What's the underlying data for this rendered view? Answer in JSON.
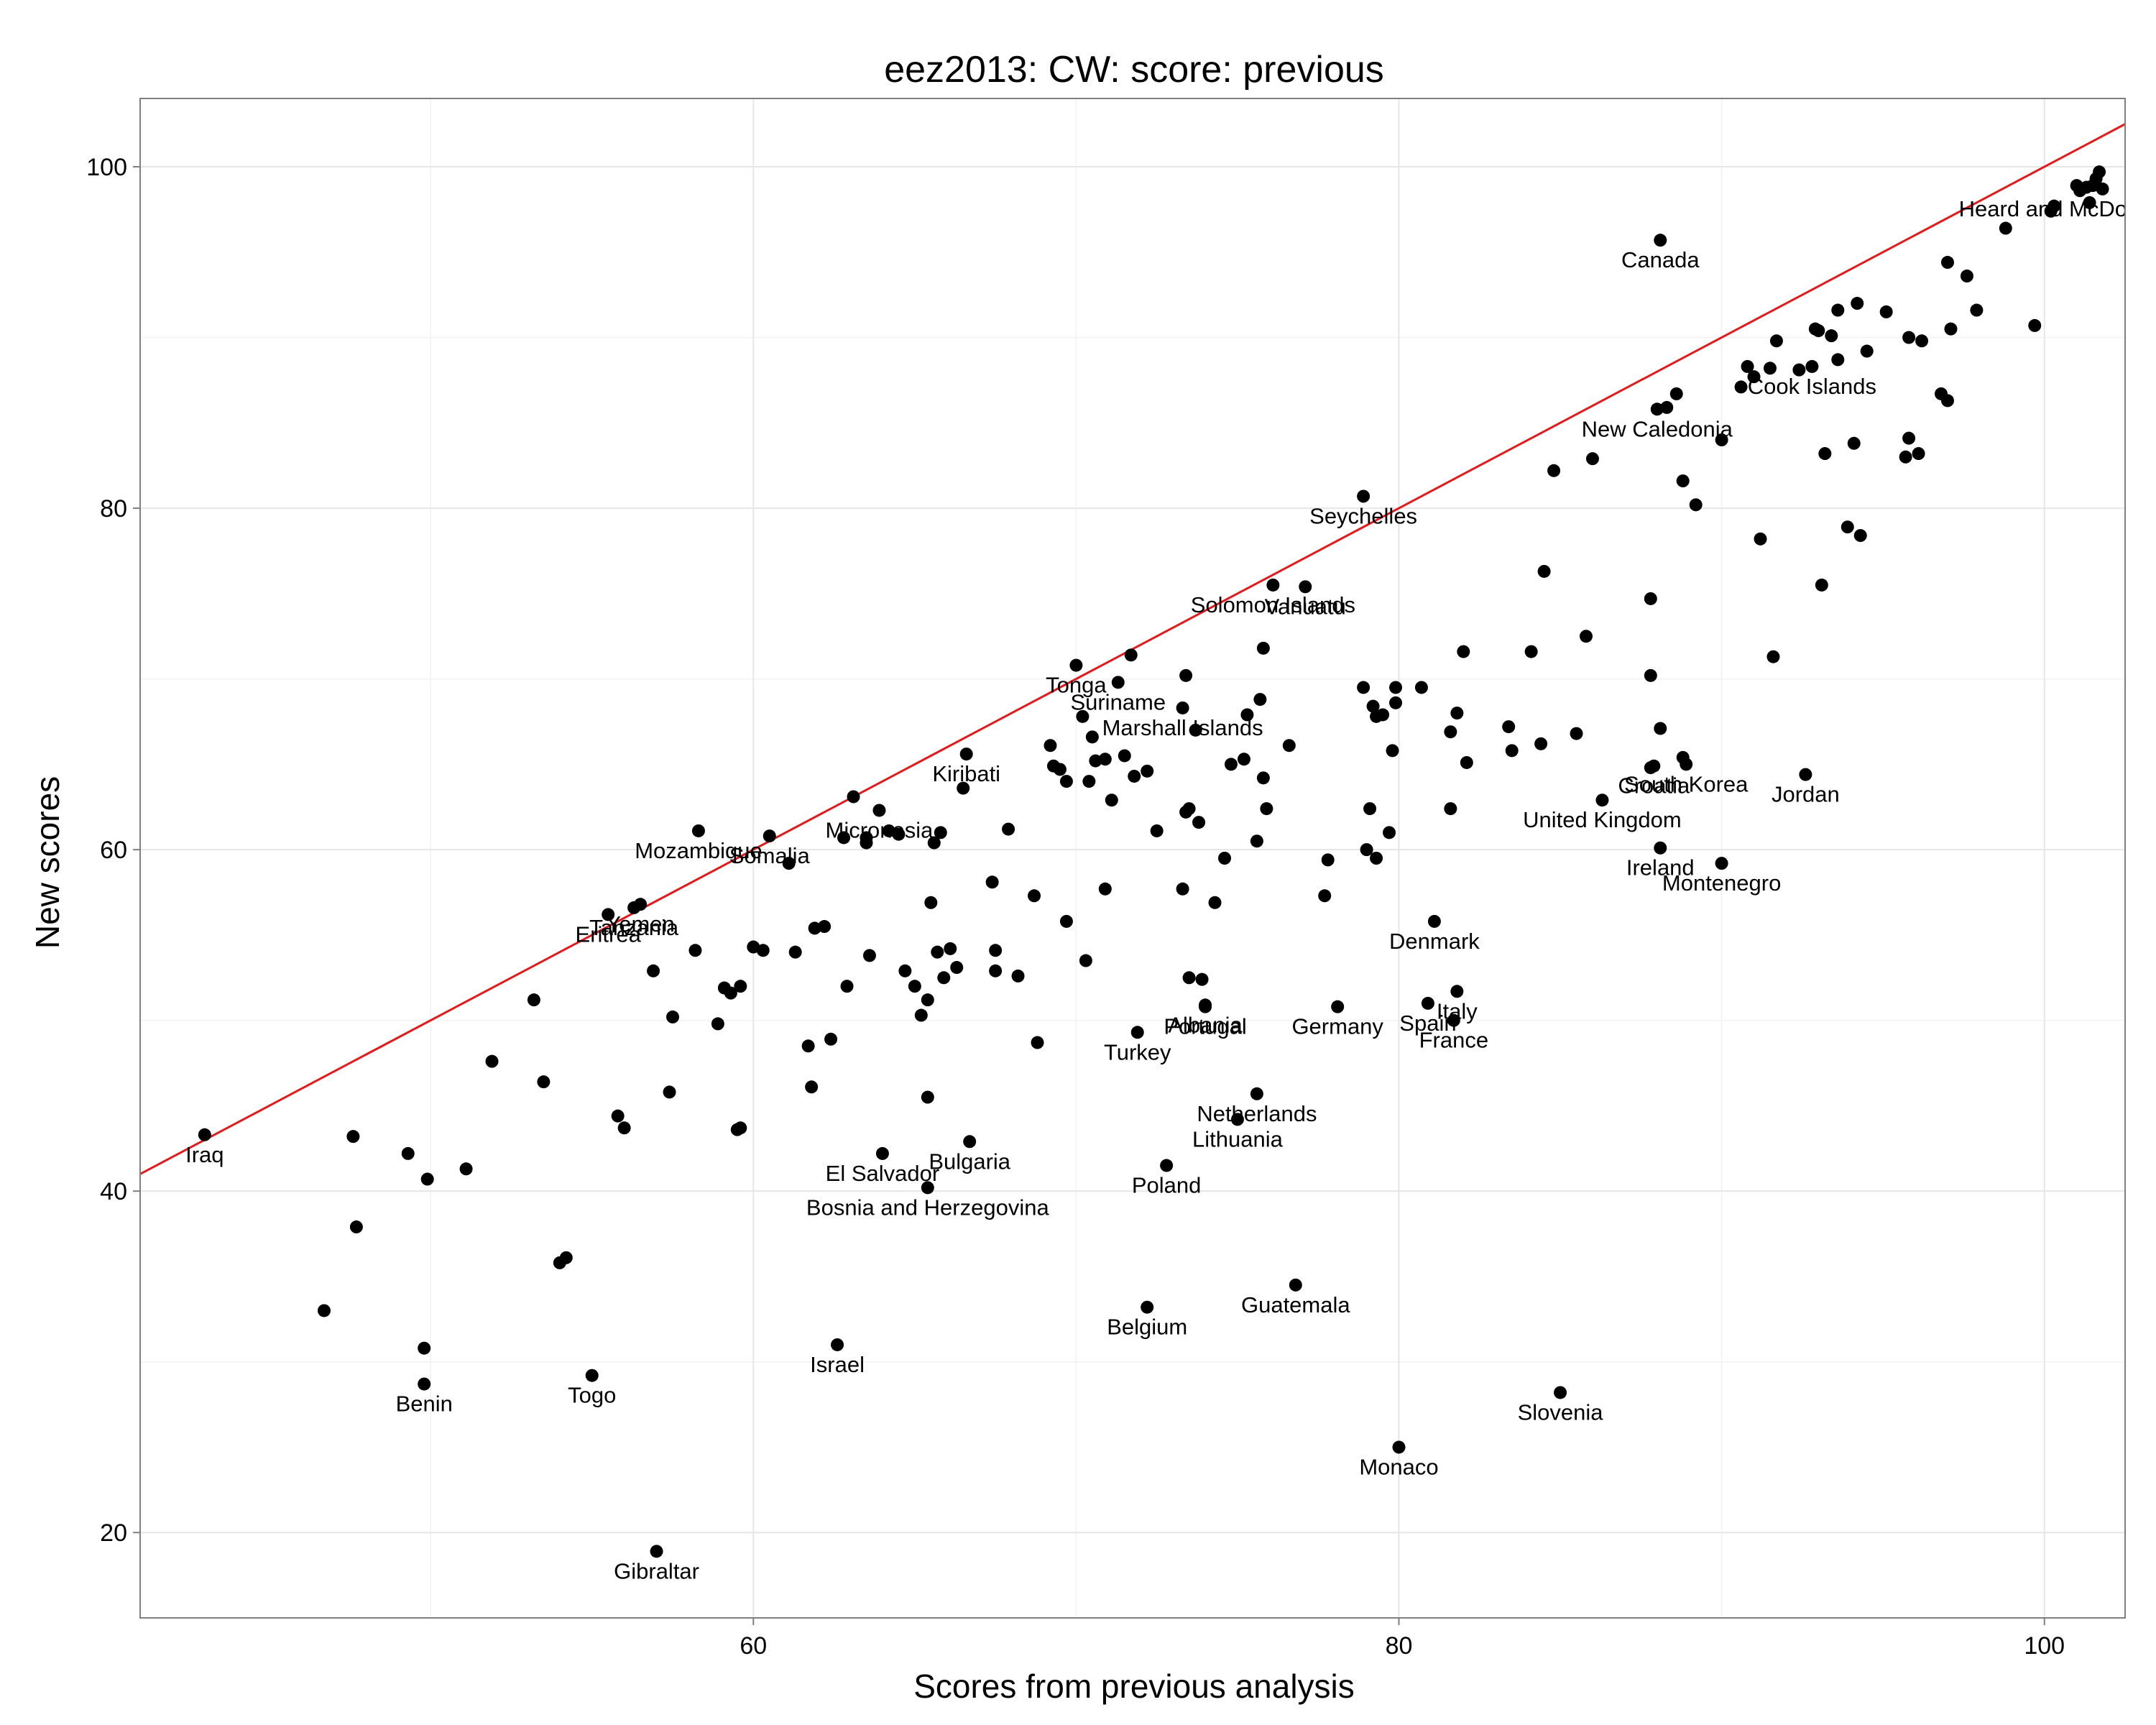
{
  "chart_data": {
    "type": "scatter",
    "title": "eez2013: CW: score: previous",
    "xlabel": "Scores from previous analysis",
    "ylabel": "New scores",
    "xlim": [
      41.0,
      102.5
    ],
    "ylim": [
      15.0,
      104.0
    ],
    "xticks": [
      60,
      80,
      100
    ],
    "yticks": [
      20,
      40,
      60,
      80,
      100
    ],
    "grid": true,
    "reference_line": {
      "slope": 1,
      "intercept": 0,
      "color": "#e31a1c"
    },
    "points": [
      {
        "x": 43.0,
        "y": 43.3,
        "label": "Iraq"
      },
      {
        "x": 46.7,
        "y": 33.0,
        "label": ""
      },
      {
        "x": 47.6,
        "y": 43.2,
        "label": ""
      },
      {
        "x": 47.7,
        "y": 37.9,
        "label": ""
      },
      {
        "x": 49.3,
        "y": 42.2,
        "label": ""
      },
      {
        "x": 49.8,
        "y": 30.8,
        "label": ""
      },
      {
        "x": 49.8,
        "y": 28.7,
        "label": "Benin"
      },
      {
        "x": 49.9,
        "y": 40.7,
        "label": ""
      },
      {
        "x": 51.1,
        "y": 41.3,
        "label": ""
      },
      {
        "x": 51.9,
        "y": 47.6,
        "label": ""
      },
      {
        "x": 53.2,
        "y": 51.2,
        "label": ""
      },
      {
        "x": 53.5,
        "y": 46.4,
        "label": ""
      },
      {
        "x": 54.0,
        "y": 35.8,
        "label": ""
      },
      {
        "x": 54.2,
        "y": 36.1,
        "label": ""
      },
      {
        "x": 55.0,
        "y": 29.2,
        "label": "Togo"
      },
      {
        "x": 55.5,
        "y": 56.2,
        "label": "Eritrea"
      },
      {
        "x": 55.8,
        "y": 44.4,
        "label": ""
      },
      {
        "x": 56.0,
        "y": 43.7,
        "label": ""
      },
      {
        "x": 56.3,
        "y": 56.6,
        "label": "Tanzania"
      },
      {
        "x": 56.5,
        "y": 56.8,
        "label": "Yemen"
      },
      {
        "x": 56.9,
        "y": 52.9,
        "label": ""
      },
      {
        "x": 57.0,
        "y": 18.9,
        "label": "Gibraltar"
      },
      {
        "x": 57.4,
        "y": 45.8,
        "label": ""
      },
      {
        "x": 57.5,
        "y": 50.2,
        "label": ""
      },
      {
        "x": 58.2,
        "y": 54.1,
        "label": ""
      },
      {
        "x": 58.3,
        "y": 61.1,
        "label": "Mozambique"
      },
      {
        "x": 58.9,
        "y": 49.8,
        "label": ""
      },
      {
        "x": 59.1,
        "y": 51.9,
        "label": ""
      },
      {
        "x": 59.3,
        "y": 51.6,
        "label": ""
      },
      {
        "x": 59.5,
        "y": 43.6,
        "label": ""
      },
      {
        "x": 59.6,
        "y": 43.7,
        "label": ""
      },
      {
        "x": 59.6,
        "y": 52.0,
        "label": ""
      },
      {
        "x": 60.0,
        "y": 54.3,
        "label": ""
      },
      {
        "x": 60.3,
        "y": 54.1,
        "label": ""
      },
      {
        "x": 60.5,
        "y": 60.8,
        "label": "Somalia"
      },
      {
        "x": 61.1,
        "y": 59.2,
        "label": ""
      },
      {
        "x": 61.3,
        "y": 54.0,
        "label": ""
      },
      {
        "x": 61.7,
        "y": 48.5,
        "label": ""
      },
      {
        "x": 61.8,
        "y": 46.1,
        "label": ""
      },
      {
        "x": 61.9,
        "y": 55.4,
        "label": ""
      },
      {
        "x": 62.2,
        "y": 55.5,
        "label": ""
      },
      {
        "x": 62.4,
        "y": 48.9,
        "label": ""
      },
      {
        "x": 62.6,
        "y": 31.0,
        "label": "Israel"
      },
      {
        "x": 62.8,
        "y": 60.7,
        "label": ""
      },
      {
        "x": 62.9,
        "y": 52.0,
        "label": ""
      },
      {
        "x": 63.1,
        "y": 63.1,
        "label": ""
      },
      {
        "x": 63.5,
        "y": 60.4,
        "label": ""
      },
      {
        "x": 63.5,
        "y": 60.7,
        "label": ""
      },
      {
        "x": 63.6,
        "y": 53.8,
        "label": ""
      },
      {
        "x": 63.9,
        "y": 62.3,
        "label": "Micronesia"
      },
      {
        "x": 64.0,
        "y": 42.2,
        "label": "El Salvador"
      },
      {
        "x": 64.2,
        "y": 61.1,
        "label": ""
      },
      {
        "x": 64.5,
        "y": 60.9,
        "label": ""
      },
      {
        "x": 64.7,
        "y": 52.9,
        "label": ""
      },
      {
        "x": 65.0,
        "y": 52.0,
        "label": ""
      },
      {
        "x": 65.2,
        "y": 50.3,
        "label": ""
      },
      {
        "x": 65.4,
        "y": 51.2,
        "label": ""
      },
      {
        "x": 65.4,
        "y": 40.2,
        "label": "Bosnia and Herzegovina"
      },
      {
        "x": 65.4,
        "y": 45.5,
        "label": ""
      },
      {
        "x": 65.5,
        "y": 56.9,
        "label": ""
      },
      {
        "x": 65.6,
        "y": 60.4,
        "label": ""
      },
      {
        "x": 65.7,
        "y": 54.0,
        "label": ""
      },
      {
        "x": 65.8,
        "y": 61.0,
        "label": ""
      },
      {
        "x": 65.9,
        "y": 52.5,
        "label": ""
      },
      {
        "x": 66.1,
        "y": 54.2,
        "label": ""
      },
      {
        "x": 66.3,
        "y": 53.1,
        "label": ""
      },
      {
        "x": 66.5,
        "y": 63.6,
        "label": ""
      },
      {
        "x": 66.6,
        "y": 65.6,
        "label": "Kiribati"
      },
      {
        "x": 66.7,
        "y": 42.9,
        "label": "Bulgaria"
      },
      {
        "x": 67.4,
        "y": 58.1,
        "label": ""
      },
      {
        "x": 67.5,
        "y": 54.1,
        "label": ""
      },
      {
        "x": 67.5,
        "y": 52.9,
        "label": ""
      },
      {
        "x": 67.9,
        "y": 61.2,
        "label": ""
      },
      {
        "x": 68.2,
        "y": 52.6,
        "label": ""
      },
      {
        "x": 68.7,
        "y": 57.3,
        "label": ""
      },
      {
        "x": 68.8,
        "y": 48.7,
        "label": ""
      },
      {
        "x": 69.2,
        "y": 66.1,
        "label": ""
      },
      {
        "x": 69.3,
        "y": 64.9,
        "label": ""
      },
      {
        "x": 69.5,
        "y": 64.7,
        "label": ""
      },
      {
        "x": 69.7,
        "y": 64.0,
        "label": ""
      },
      {
        "x": 69.7,
        "y": 55.8,
        "label": ""
      },
      {
        "x": 70.0,
        "y": 70.8,
        "label": "Tonga"
      },
      {
        "x": 70.2,
        "y": 67.8,
        "label": ""
      },
      {
        "x": 70.3,
        "y": 53.5,
        "label": ""
      },
      {
        "x": 70.4,
        "y": 64.0,
        "label": ""
      },
      {
        "x": 70.5,
        "y": 66.6,
        "label": ""
      },
      {
        "x": 70.6,
        "y": 65.2,
        "label": ""
      },
      {
        "x": 70.9,
        "y": 65.3,
        "label": ""
      },
      {
        "x": 70.9,
        "y": 57.7,
        "label": ""
      },
      {
        "x": 71.1,
        "y": 62.9,
        "label": ""
      },
      {
        "x": 71.3,
        "y": 69.8,
        "label": "Suriname"
      },
      {
        "x": 71.5,
        "y": 65.5,
        "label": ""
      },
      {
        "x": 71.7,
        "y": 71.4,
        "label": ""
      },
      {
        "x": 71.8,
        "y": 64.3,
        "label": ""
      },
      {
        "x": 71.9,
        "y": 49.3,
        "label": "Turkey"
      },
      {
        "x": 72.2,
        "y": 33.2,
        "label": "Belgium"
      },
      {
        "x": 72.2,
        "y": 64.6,
        "label": ""
      },
      {
        "x": 72.5,
        "y": 61.1,
        "label": ""
      },
      {
        "x": 72.8,
        "y": 41.5,
        "label": "Poland"
      },
      {
        "x": 73.3,
        "y": 68.3,
        "label": "Marshall Islands"
      },
      {
        "x": 73.3,
        "y": 57.7,
        "label": ""
      },
      {
        "x": 73.4,
        "y": 70.2,
        "label": ""
      },
      {
        "x": 73.4,
        "y": 62.2,
        "label": ""
      },
      {
        "x": 73.5,
        "y": 62.4,
        "label": ""
      },
      {
        "x": 73.5,
        "y": 52.5,
        "label": ""
      },
      {
        "x": 73.7,
        "y": 67.0,
        "label": ""
      },
      {
        "x": 73.8,
        "y": 61.6,
        "label": ""
      },
      {
        "x": 73.9,
        "y": 52.4,
        "label": ""
      },
      {
        "x": 74.0,
        "y": 50.9,
        "label": "Albania"
      },
      {
        "x": 74.0,
        "y": 50.8,
        "label": "Portugal"
      },
      {
        "x": 74.3,
        "y": 56.9,
        "label": ""
      },
      {
        "x": 74.6,
        "y": 59.5,
        "label": ""
      },
      {
        "x": 74.8,
        "y": 65.0,
        "label": ""
      },
      {
        "x": 75.0,
        "y": 44.2,
        "label": "Lithuania"
      },
      {
        "x": 75.2,
        "y": 65.3,
        "label": ""
      },
      {
        "x": 75.3,
        "y": 67.9,
        "label": ""
      },
      {
        "x": 75.6,
        "y": 45.7,
        "label": "Netherlands"
      },
      {
        "x": 75.6,
        "y": 60.5,
        "label": ""
      },
      {
        "x": 75.7,
        "y": 68.8,
        "label": ""
      },
      {
        "x": 75.8,
        "y": 71.8,
        "label": ""
      },
      {
        "x": 75.8,
        "y": 64.2,
        "label": ""
      },
      {
        "x": 75.9,
        "y": 62.4,
        "label": ""
      },
      {
        "x": 76.1,
        "y": 75.5,
        "label": "Solomon Islands"
      },
      {
        "x": 76.6,
        "y": 66.1,
        "label": ""
      },
      {
        "x": 76.8,
        "y": 34.5,
        "label": "Guatemala"
      },
      {
        "x": 77.1,
        "y": 75.4,
        "label": "Vanuatu"
      },
      {
        "x": 77.7,
        "y": 57.3,
        "label": ""
      },
      {
        "x": 77.8,
        "y": 59.4,
        "label": ""
      },
      {
        "x": 78.1,
        "y": 50.8,
        "label": "Germany"
      },
      {
        "x": 78.9,
        "y": 80.7,
        "label": "Seychelles"
      },
      {
        "x": 78.9,
        "y": 69.5,
        "label": ""
      },
      {
        "x": 79.0,
        "y": 60.0,
        "label": ""
      },
      {
        "x": 79.1,
        "y": 62.4,
        "label": ""
      },
      {
        "x": 79.2,
        "y": 68.4,
        "label": ""
      },
      {
        "x": 79.3,
        "y": 59.5,
        "label": ""
      },
      {
        "x": 79.3,
        "y": 67.8,
        "label": ""
      },
      {
        "x": 79.5,
        "y": 67.9,
        "label": ""
      },
      {
        "x": 79.7,
        "y": 61.0,
        "label": ""
      },
      {
        "x": 79.8,
        "y": 65.8,
        "label": ""
      },
      {
        "x": 79.9,
        "y": 68.6,
        "label": ""
      },
      {
        "x": 79.9,
        "y": 69.5,
        "label": ""
      },
      {
        "x": 80.0,
        "y": 25.0,
        "label": "Monaco"
      },
      {
        "x": 80.7,
        "y": 69.5,
        "label": ""
      },
      {
        "x": 80.9,
        "y": 51.0,
        "label": "Spain"
      },
      {
        "x": 81.1,
        "y": 55.8,
        "label": "Denmark"
      },
      {
        "x": 81.6,
        "y": 62.4,
        "label": ""
      },
      {
        "x": 81.6,
        "y": 66.9,
        "label": ""
      },
      {
        "x": 81.7,
        "y": 50.0,
        "label": "France"
      },
      {
        "x": 81.8,
        "y": 51.7,
        "label": "Italy"
      },
      {
        "x": 81.8,
        "y": 68.0,
        "label": ""
      },
      {
        "x": 82.0,
        "y": 71.6,
        "label": ""
      },
      {
        "x": 82.1,
        "y": 65.1,
        "label": ""
      },
      {
        "x": 83.4,
        "y": 67.2,
        "label": ""
      },
      {
        "x": 83.5,
        "y": 65.8,
        "label": ""
      },
      {
        "x": 84.1,
        "y": 71.6,
        "label": ""
      },
      {
        "x": 84.4,
        "y": 66.2,
        "label": ""
      },
      {
        "x": 84.5,
        "y": 76.3,
        "label": ""
      },
      {
        "x": 84.8,
        "y": 82.2,
        "label": ""
      },
      {
        "x": 85.0,
        "y": 28.2,
        "label": "Slovenia"
      },
      {
        "x": 85.5,
        "y": 66.8,
        "label": ""
      },
      {
        "x": 85.8,
        "y": 72.5,
        "label": ""
      },
      {
        "x": 86.0,
        "y": 82.9,
        "label": ""
      },
      {
        "x": 86.3,
        "y": 62.9,
        "label": "United Kingdom"
      },
      {
        "x": 87.8,
        "y": 74.7,
        "label": ""
      },
      {
        "x": 87.8,
        "y": 70.2,
        "label": ""
      },
      {
        "x": 87.8,
        "y": 64.8,
        "label": ""
      },
      {
        "x": 87.9,
        "y": 64.9,
        "label": "Croatia"
      },
      {
        "x": 88.0,
        "y": 85.8,
        "label": "New Caledonia"
      },
      {
        "x": 88.1,
        "y": 95.7,
        "label": "Canada"
      },
      {
        "x": 88.1,
        "y": 67.1,
        "label": ""
      },
      {
        "x": 88.1,
        "y": 60.1,
        "label": "Ireland"
      },
      {
        "x": 88.3,
        "y": 85.9,
        "label": ""
      },
      {
        "x": 88.6,
        "y": 86.7,
        "label": ""
      },
      {
        "x": 88.8,
        "y": 81.6,
        "label": ""
      },
      {
        "x": 88.8,
        "y": 65.4,
        "label": ""
      },
      {
        "x": 88.9,
        "y": 65.0,
        "label": "South Korea"
      },
      {
        "x": 89.2,
        "y": 80.2,
        "label": ""
      },
      {
        "x": 90.0,
        "y": 84.0,
        "label": ""
      },
      {
        "x": 90.0,
        "y": 59.2,
        "label": "Montenegro"
      },
      {
        "x": 90.6,
        "y": 87.1,
        "label": ""
      },
      {
        "x": 90.8,
        "y": 88.3,
        "label": ""
      },
      {
        "x": 91.0,
        "y": 87.7,
        "label": ""
      },
      {
        "x": 91.2,
        "y": 78.2,
        "label": ""
      },
      {
        "x": 91.5,
        "y": 88.2,
        "label": ""
      },
      {
        "x": 91.6,
        "y": 71.3,
        "label": ""
      },
      {
        "x": 91.7,
        "y": 89.8,
        "label": ""
      },
      {
        "x": 92.4,
        "y": 88.1,
        "label": ""
      },
      {
        "x": 92.6,
        "y": 64.4,
        "label": "Jordan"
      },
      {
        "x": 92.8,
        "y": 88.3,
        "label": "Cook Islands"
      },
      {
        "x": 92.9,
        "y": 90.5,
        "label": ""
      },
      {
        "x": 93.0,
        "y": 90.4,
        "label": ""
      },
      {
        "x": 93.1,
        "y": 75.5,
        "label": ""
      },
      {
        "x": 93.2,
        "y": 83.2,
        "label": ""
      },
      {
        "x": 93.4,
        "y": 90.1,
        "label": ""
      },
      {
        "x": 93.6,
        "y": 88.7,
        "label": ""
      },
      {
        "x": 93.6,
        "y": 91.6,
        "label": ""
      },
      {
        "x": 93.9,
        "y": 78.9,
        "label": ""
      },
      {
        "x": 94.1,
        "y": 83.8,
        "label": ""
      },
      {
        "x": 94.2,
        "y": 92.0,
        "label": ""
      },
      {
        "x": 94.3,
        "y": 78.4,
        "label": ""
      },
      {
        "x": 94.5,
        "y": 89.2,
        "label": ""
      },
      {
        "x": 95.1,
        "y": 91.5,
        "label": ""
      },
      {
        "x": 95.7,
        "y": 83.0,
        "label": ""
      },
      {
        "x": 95.8,
        "y": 84.1,
        "label": ""
      },
      {
        "x": 95.8,
        "y": 90.0,
        "label": ""
      },
      {
        "x": 96.1,
        "y": 83.2,
        "label": ""
      },
      {
        "x": 96.2,
        "y": 89.8,
        "label": ""
      },
      {
        "x": 96.8,
        "y": 86.7,
        "label": ""
      },
      {
        "x": 97.0,
        "y": 86.3,
        "label": ""
      },
      {
        "x": 97.0,
        "y": 94.4,
        "label": ""
      },
      {
        "x": 97.1,
        "y": 90.5,
        "label": ""
      },
      {
        "x": 97.6,
        "y": 93.6,
        "label": ""
      },
      {
        "x": 97.9,
        "y": 91.6,
        "label": ""
      },
      {
        "x": 98.8,
        "y": 96.4,
        "label": ""
      },
      {
        "x": 99.7,
        "y": 90.7,
        "label": ""
      },
      {
        "x": 100.2,
        "y": 97.4,
        "label": ""
      },
      {
        "x": 100.3,
        "y": 97.7,
        "label": ""
      },
      {
        "x": 101.0,
        "y": 98.9,
        "label": ""
      },
      {
        "x": 101.1,
        "y": 98.6,
        "label": ""
      },
      {
        "x": 101.3,
        "y": 98.8,
        "label": ""
      },
      {
        "x": 101.4,
        "y": 97.9,
        "label": ""
      },
      {
        "x": 101.5,
        "y": 98.9,
        "label": ""
      },
      {
        "x": 101.6,
        "y": 99.3,
        "label": ""
      },
      {
        "x": 101.7,
        "y": 99.7,
        "label": ""
      },
      {
        "x": 101.8,
        "y": 98.7,
        "label": "Heard and McDonald Islands"
      }
    ]
  }
}
